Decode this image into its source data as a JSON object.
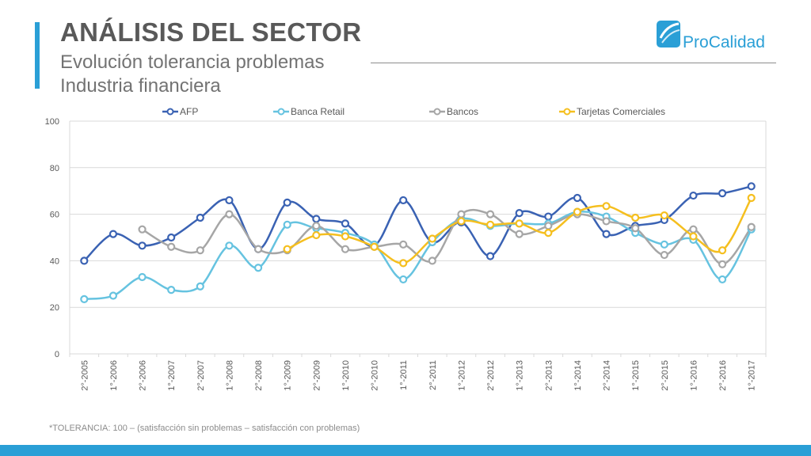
{
  "header": {
    "title": "ANÁLISIS DEL SECTOR",
    "subtitle_line1": "Evolución tolerancia problemas",
    "subtitle_line2": "Industria financiera"
  },
  "logo": {
    "text_pro": "Pro",
    "text_calidad": "Calidad",
    "color": "#2a9fd6"
  },
  "footnote": "*TOLERANCIA: 100 – (satisfacción sin problemas – satisfacción con problemas)",
  "colors": {
    "accent": "#2a9fd6"
  },
  "chart_data": {
    "type": "line",
    "title": "",
    "xlabel": "",
    "ylabel": "",
    "ylim": [
      0,
      100
    ],
    "yticks": [
      0,
      20,
      40,
      60,
      80,
      100
    ],
    "grid": true,
    "legend_position": "top",
    "categories": [
      "2°-2005",
      "1°-2006",
      "2°-2006",
      "1°-2007",
      "2°-2007",
      "1°-2008",
      "2°-2008",
      "1°-2009",
      "2°-2009",
      "1°-2010",
      "2°-2010",
      "1°-2011",
      "2°-2011",
      "1°-2012",
      "2°-2012",
      "1°-2013",
      "2°-2013",
      "1°-2014",
      "2°-2014",
      "1°-2015",
      "2°-2015",
      "1°-2016",
      "2°-2016",
      "1°-2017"
    ],
    "series": [
      {
        "name": "AFP",
        "color": "#3a62b3",
        "values": [
          40,
          51.5,
          46.5,
          50,
          58.5,
          66,
          45,
          65,
          58,
          56,
          46.5,
          66,
          48,
          56.5,
          42,
          60.5,
          59,
          67,
          51.5,
          55,
          57.5,
          68,
          69,
          72
        ]
      },
      {
        "name": "Banca Retail",
        "color": "#66c3e0",
        "values": [
          23.5,
          25,
          33,
          27.5,
          29,
          46.5,
          37,
          55.5,
          54,
          52,
          47,
          32,
          48,
          58,
          55,
          56,
          56,
          61,
          59,
          52,
          47,
          49,
          32,
          53.5
        ]
      },
      {
        "name": "Bancos",
        "color": "#a6a6a6",
        "values": [
          null,
          null,
          53.5,
          46,
          44.5,
          60,
          45,
          44.5,
          55,
          45,
          46,
          47,
          40,
          60,
          60,
          51.5,
          55,
          60,
          57,
          54,
          42.5,
          53.5,
          38.5,
          54.5
        ]
      },
      {
        "name": "Tarjetas Comerciales",
        "color": "#f5bf1f",
        "values": [
          null,
          null,
          null,
          null,
          null,
          null,
          null,
          45,
          51,
          50.5,
          46,
          39,
          49.5,
          57,
          55.5,
          56,
          52,
          61,
          63.5,
          58.5,
          59.5,
          50.5,
          44.5,
          67
        ]
      }
    ]
  }
}
